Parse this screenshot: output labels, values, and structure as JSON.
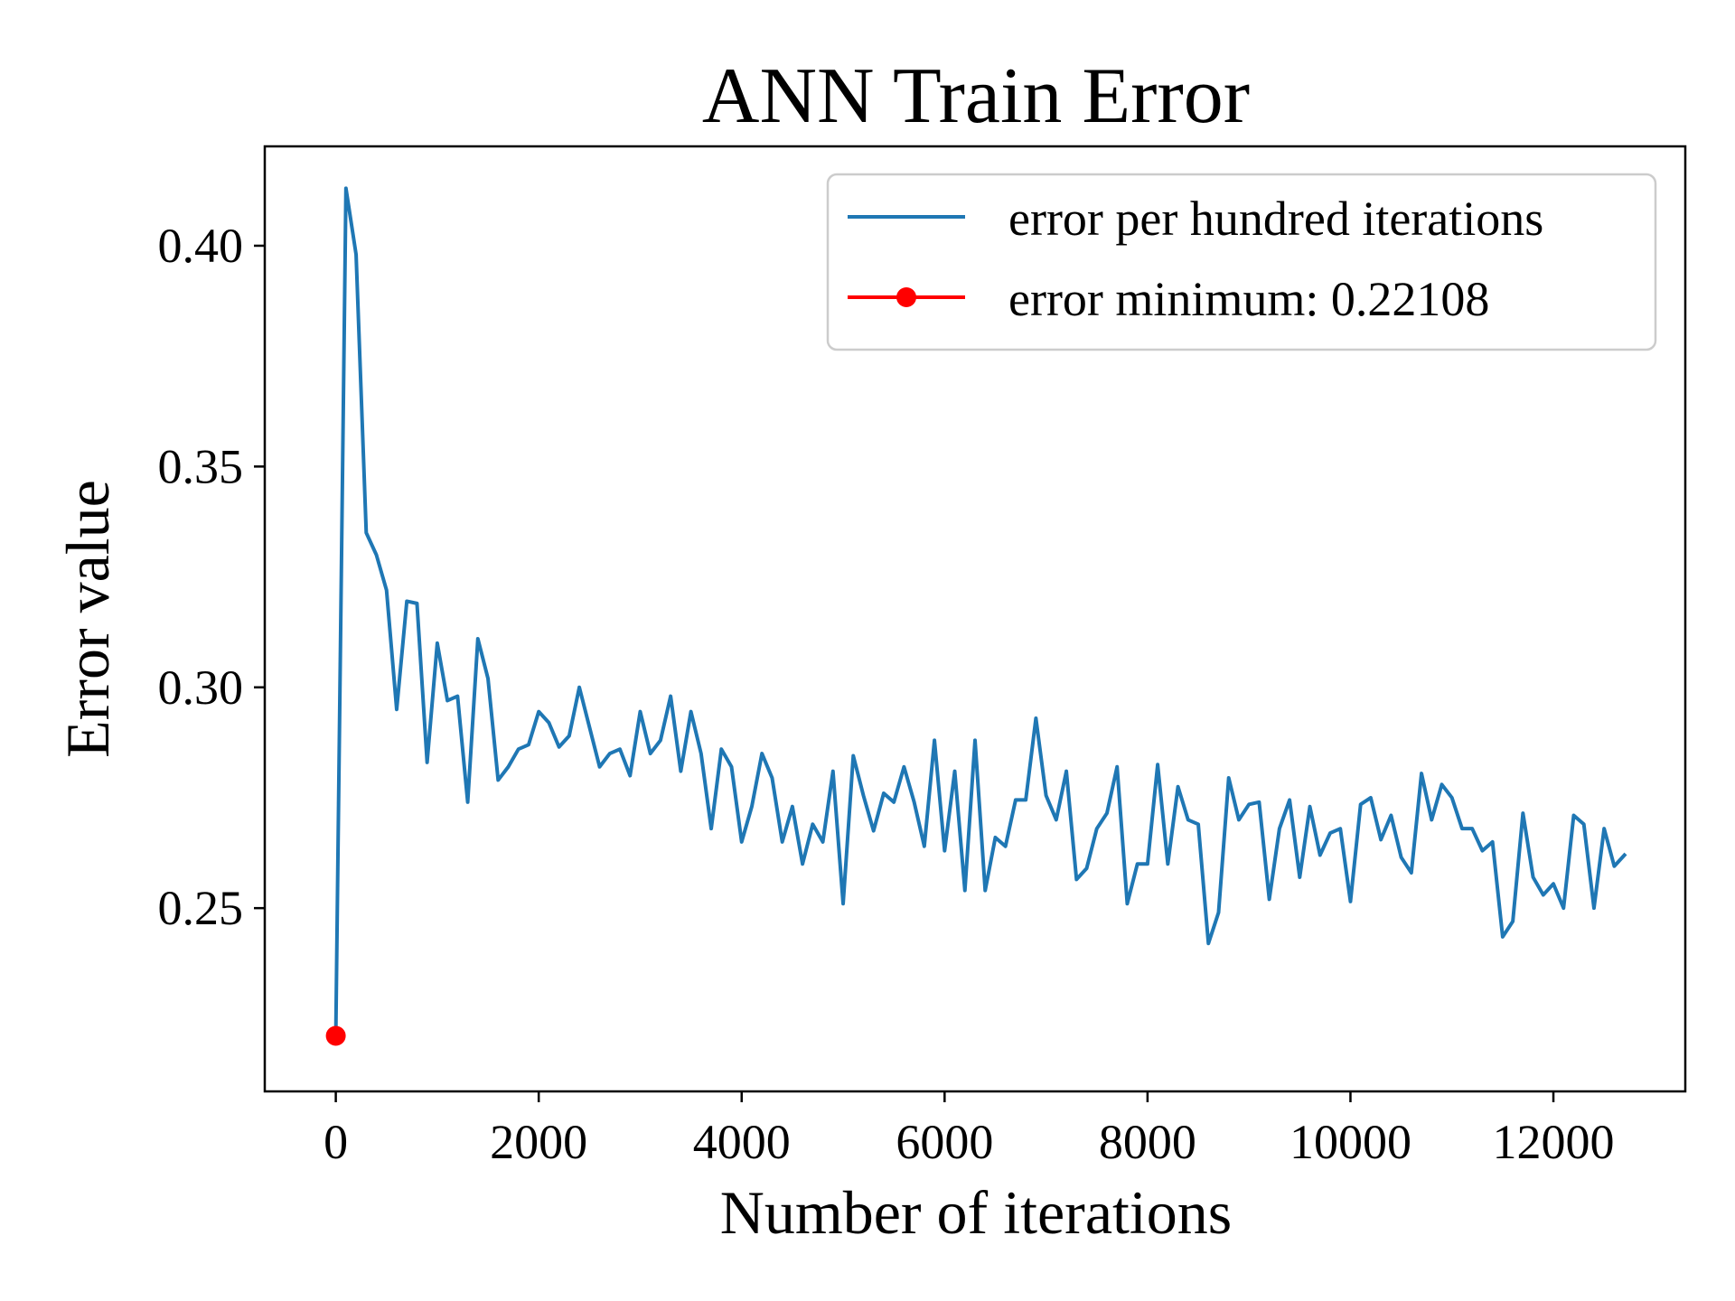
{
  "chart_data": {
    "type": "line",
    "title": "ANN  Train Error",
    "xlabel": "Number of iterations",
    "ylabel": "Error value",
    "xlim": [
      -700,
      13300
    ],
    "ylim": [
      0.2085,
      0.4225
    ],
    "xticks": [
      0,
      2000,
      4000,
      6000,
      8000,
      10000,
      12000
    ],
    "xtick_labels": [
      "0",
      "2000",
      "4000",
      "6000",
      "8000",
      "10000",
      "12000"
    ],
    "yticks": [
      0.25,
      0.3,
      0.35,
      0.4
    ],
    "ytick_labels": [
      "0.25",
      "0.30",
      "0.35",
      "0.40"
    ],
    "grid": false,
    "legend_position": "top-right",
    "series": [
      {
        "name": "error per hundred iterations",
        "color": "#1f77b4",
        "x": [
          0,
          100,
          200,
          300,
          400,
          500,
          600,
          700,
          800,
          900,
          1000,
          1100,
          1200,
          1300,
          1400,
          1500,
          1600,
          1700,
          1800,
          1900,
          2000,
          2100,
          2200,
          2300,
          2400,
          2500,
          2600,
          2700,
          2800,
          2900,
          3000,
          3100,
          3200,
          3300,
          3400,
          3500,
          3600,
          3700,
          3800,
          3900,
          4000,
          4100,
          4200,
          4300,
          4400,
          4500,
          4600,
          4700,
          4800,
          4900,
          5000,
          5100,
          5200,
          5300,
          5400,
          5500,
          5600,
          5700,
          5800,
          5900,
          6000,
          6100,
          6200,
          6300,
          6400,
          6500,
          6600,
          6700,
          6800,
          6900,
          7000,
          7100,
          7200,
          7300,
          7400,
          7500,
          7600,
          7700,
          7800,
          7900,
          8000,
          8100,
          8200,
          8300,
          8400,
          8500,
          8600,
          8700,
          8800,
          8900,
          9000,
          9100,
          9200,
          9300,
          9400,
          9500,
          9600,
          9700,
          9800,
          9900,
          10000,
          10100,
          10200,
          10300,
          10400,
          10500,
          10600,
          10700,
          10800,
          10900,
          11000,
          11100,
          11200,
          11300,
          11400,
          11500,
          11600,
          11700,
          11800,
          11900,
          12000,
          12100,
          12200,
          12300,
          12400,
          12500,
          12600,
          12700
        ],
        "y": [
          0.2211,
          0.413,
          0.398,
          0.335,
          0.33,
          0.322,
          0.295,
          0.3195,
          0.319,
          0.283,
          0.31,
          0.297,
          0.298,
          0.274,
          0.311,
          0.302,
          0.279,
          0.282,
          0.286,
          0.287,
          0.2945,
          0.292,
          0.2865,
          0.289,
          0.3,
          0.291,
          0.282,
          0.285,
          0.286,
          0.28,
          0.2945,
          0.285,
          0.288,
          0.298,
          0.281,
          0.2945,
          0.285,
          0.268,
          0.286,
          0.282,
          0.265,
          0.273,
          0.285,
          0.2795,
          0.265,
          0.273,
          0.26,
          0.269,
          0.265,
          0.281,
          0.251,
          0.2845,
          0.2755,
          0.2675,
          0.276,
          0.274,
          0.282,
          0.274,
          0.264,
          0.288,
          0.263,
          0.281,
          0.254,
          0.288,
          0.254,
          0.266,
          0.264,
          0.2745,
          0.2745,
          0.293,
          0.2755,
          0.27,
          0.281,
          0.2565,
          0.259,
          0.268,
          0.2715,
          0.282,
          0.251,
          0.26,
          0.26,
          0.2825,
          0.26,
          0.2775,
          0.27,
          0.269,
          0.242,
          0.249,
          0.2795,
          0.27,
          0.2735,
          0.274,
          0.252,
          0.268,
          0.2745,
          0.257,
          0.273,
          0.262,
          0.267,
          0.268,
          0.2515,
          0.2735,
          0.275,
          0.2655,
          0.271,
          0.2615,
          0.258,
          0.2805,
          0.27,
          0.278,
          0.275,
          0.268,
          0.268,
          0.263,
          0.265,
          0.2435,
          0.247,
          0.2715,
          0.257,
          0.253,
          0.2555,
          0.25,
          0.271,
          0.269,
          0.25,
          0.268,
          0.2595,
          0.262
        ]
      },
      {
        "name": "error minimum: 0.22108",
        "color": "#ff0000",
        "x": [
          0
        ],
        "y": [
          0.22108
        ],
        "marker": "circle"
      }
    ]
  }
}
